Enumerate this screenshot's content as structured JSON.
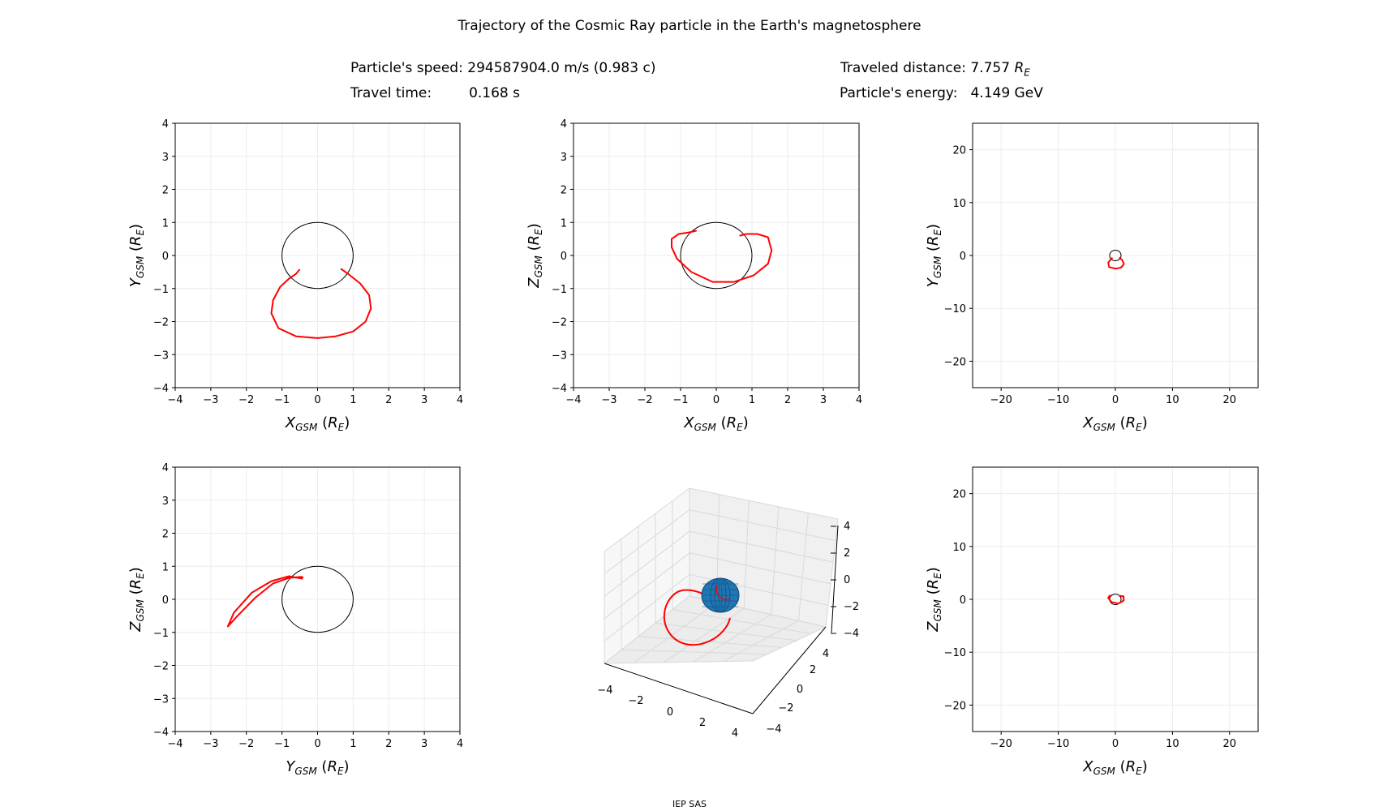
{
  "header": {
    "title": "Trajectory of the Cosmic Ray particle in the Earth's magnetosphere",
    "speed_label": "Particle's speed:",
    "speed_value": "294587904.0 m/s (0.983 c)",
    "time_label": "Travel time:",
    "time_value": "0.168 s",
    "distance_label": "Traveled distance:",
    "distance_value": "7.757",
    "distance_unit_base": "R",
    "distance_unit_sub": "E",
    "energy_label": "Particle's energy:",
    "energy_value": "4.149 GeV"
  },
  "footer": {
    "text": "IEP SAS"
  },
  "colors": {
    "trajectory": "#ff0000",
    "earth_outline": "#000000",
    "earth_fill": "#1f77b4",
    "grid": "#ececec"
  },
  "chart_data": [
    {
      "type": "line",
      "id": "xy-zoom",
      "xlabel": {
        "base": "X",
        "sub": "GSM",
        "unit_base": "R",
        "unit_sub": "E"
      },
      "ylabel": {
        "base": "Y",
        "sub": "GSM",
        "unit_base": "R",
        "unit_sub": "E"
      },
      "xlim": [
        -4,
        4
      ],
      "ylim": [
        -4,
        4
      ],
      "xticks": [
        -4,
        -3,
        -2,
        -1,
        0,
        1,
        2,
        3,
        4
      ],
      "yticks": [
        -4,
        -3,
        -2,
        -1,
        0,
        1,
        2,
        3,
        4
      ],
      "grid": true,
      "earth": {
        "cx": 0,
        "cy": 0,
        "r": 1
      },
      "trajectory": [
        [
          -0.5,
          -0.42
        ],
        [
          -0.6,
          -0.55
        ],
        [
          -0.8,
          -0.7
        ],
        [
          -1.05,
          -0.95
        ],
        [
          -1.25,
          -1.35
        ],
        [
          -1.3,
          -1.75
        ],
        [
          -1.1,
          -2.2
        ],
        [
          -0.6,
          -2.45
        ],
        [
          0.0,
          -2.5
        ],
        [
          0.5,
          -2.45
        ],
        [
          1.0,
          -2.3
        ],
        [
          1.35,
          -2.0
        ],
        [
          1.5,
          -1.6
        ],
        [
          1.45,
          -1.2
        ],
        [
          1.2,
          -0.85
        ],
        [
          0.85,
          -0.55
        ],
        [
          0.65,
          -0.4
        ]
      ]
    },
    {
      "type": "line",
      "id": "xz-zoom",
      "xlabel": {
        "base": "X",
        "sub": "GSM",
        "unit_base": "R",
        "unit_sub": "E"
      },
      "ylabel": {
        "base": "Z",
        "sub": "GSM",
        "unit_base": "R",
        "unit_sub": "E"
      },
      "xlim": [
        -4,
        4
      ],
      "ylim": [
        -4,
        4
      ],
      "xticks": [
        -4,
        -3,
        -2,
        -1,
        0,
        1,
        2,
        3,
        4
      ],
      "yticks": [
        -4,
        -3,
        -2,
        -1,
        0,
        1,
        2,
        3,
        4
      ],
      "grid": true,
      "earth": {
        "cx": 0,
        "cy": 0,
        "r": 1
      },
      "trajectory": [
        [
          -0.55,
          0.75
        ],
        [
          -0.75,
          0.7
        ],
        [
          -1.05,
          0.65
        ],
        [
          -1.25,
          0.5
        ],
        [
          -1.25,
          0.25
        ],
        [
          -1.1,
          -0.1
        ],
        [
          -0.7,
          -0.5
        ],
        [
          -0.1,
          -0.8
        ],
        [
          0.5,
          -0.8
        ],
        [
          1.05,
          -0.6
        ],
        [
          1.45,
          -0.25
        ],
        [
          1.55,
          0.15
        ],
        [
          1.45,
          0.55
        ],
        [
          1.15,
          0.65
        ],
        [
          0.85,
          0.65
        ],
        [
          0.65,
          0.6
        ]
      ]
    },
    {
      "type": "line",
      "id": "xy-wide",
      "xlabel": {
        "base": "X",
        "sub": "GSM",
        "unit_base": "R",
        "unit_sub": "E"
      },
      "ylabel": {
        "base": "Y",
        "sub": "GSM",
        "unit_base": "R",
        "unit_sub": "E"
      },
      "xlim": [
        -25,
        25
      ],
      "ylim": [
        -25,
        25
      ],
      "xticks": [
        -20,
        -10,
        0,
        10,
        20
      ],
      "yticks": [
        -20,
        -10,
        0,
        10,
        20
      ],
      "grid": true,
      "earth": {
        "cx": 0,
        "cy": 0,
        "r": 1
      },
      "trajectory": [
        [
          -0.5,
          -0.42
        ],
        [
          -0.8,
          -0.7
        ],
        [
          -1.25,
          -1.35
        ],
        [
          -1.1,
          -2.2
        ],
        [
          0.0,
          -2.5
        ],
        [
          1.0,
          -2.3
        ],
        [
          1.5,
          -1.6
        ],
        [
          1.2,
          -0.85
        ],
        [
          0.65,
          -0.4
        ]
      ]
    },
    {
      "type": "line",
      "id": "yz-zoom",
      "xlabel": {
        "base": "Y",
        "sub": "GSM",
        "unit_base": "R",
        "unit_sub": "E"
      },
      "ylabel": {
        "base": "Z",
        "sub": "GSM",
        "unit_base": "R",
        "unit_sub": "E"
      },
      "xlim": [
        -4,
        4
      ],
      "ylim": [
        -4,
        4
      ],
      "xticks": [
        -4,
        -3,
        -2,
        -1,
        0,
        1,
        2,
        3,
        4
      ],
      "yticks": [
        -4,
        -3,
        -2,
        -1,
        0,
        1,
        2,
        3,
        4
      ],
      "grid": true,
      "earth": {
        "cx": 0,
        "cy": 0,
        "r": 1
      },
      "trajectory": [
        [
          -0.42,
          0.62
        ],
        [
          -0.8,
          0.7
        ],
        [
          -1.3,
          0.55
        ],
        [
          -1.85,
          0.2
        ],
        [
          -2.35,
          -0.4
        ],
        [
          -2.52,
          -0.82
        ],
        [
          -2.25,
          -0.5
        ],
        [
          -1.75,
          0.05
        ],
        [
          -1.25,
          0.48
        ],
        [
          -0.8,
          0.65
        ],
        [
          -0.45,
          0.68
        ],
        [
          -0.4,
          0.65
        ]
      ]
    },
    {
      "type": "line",
      "id": "3d",
      "view": "3d",
      "xlim": [
        -4,
        4
      ],
      "ylim": [
        -4,
        4
      ],
      "zlim": [
        -4,
        4
      ],
      "xticks": [
        -4,
        -2,
        0,
        2,
        4
      ],
      "yticks": [
        -4,
        -2,
        0,
        2,
        4
      ],
      "zticks": [
        -4,
        -2,
        0,
        2,
        4
      ],
      "earth": {
        "cx": 0,
        "cy": 0,
        "cz": 0,
        "r": 1
      }
    },
    {
      "type": "line",
      "id": "xz-wide",
      "xlabel": {
        "base": "X",
        "sub": "GSM",
        "unit_base": "R",
        "unit_sub": "E"
      },
      "ylabel": {
        "base": "Z",
        "sub": "GSM",
        "unit_base": "R",
        "unit_sub": "E"
      },
      "xlim": [
        -25,
        25
      ],
      "ylim": [
        -25,
        25
      ],
      "xticks": [
        -20,
        -10,
        0,
        10,
        20
      ],
      "yticks": [
        -20,
        -10,
        0,
        10,
        20
      ],
      "grid": true,
      "earth": {
        "cx": 0,
        "cy": 0,
        "r": 1
      },
      "trajectory": [
        [
          -0.55,
          0.75
        ],
        [
          -1.05,
          0.65
        ],
        [
          -1.25,
          0.25
        ],
        [
          -0.7,
          -0.5
        ],
        [
          0.5,
          -0.8
        ],
        [
          1.45,
          -0.25
        ],
        [
          1.45,
          0.55
        ],
        [
          0.85,
          0.65
        ],
        [
          0.65,
          0.6
        ]
      ]
    }
  ]
}
